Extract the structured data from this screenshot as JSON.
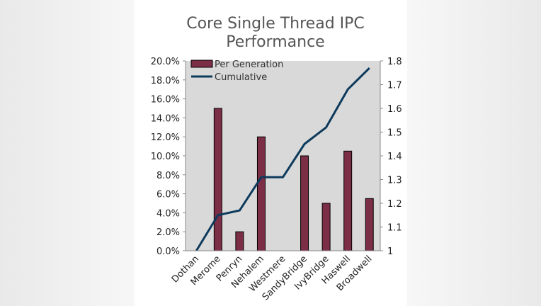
{
  "chart_data": {
    "type": "bar",
    "title": "Core Single Thread IPC Performance",
    "title_lines": [
      "Core Single Thread IPC",
      "Performance"
    ],
    "categories": [
      "Dothan",
      "Merome",
      "Penryn",
      "Nehalem",
      "Westmere",
      "SandyBridge",
      "IvyBridge",
      "Haswell",
      "Broadwell"
    ],
    "series": [
      {
        "name": "Per Generation",
        "type": "bar",
        "axis": "left",
        "color": "#7b2e46",
        "values": [
          0,
          15.0,
          2.0,
          12.0,
          0,
          10.0,
          5.0,
          10.5,
          5.5
        ]
      },
      {
        "name": "Cumulative",
        "type": "line",
        "axis": "right",
        "color": "#0d3a5c",
        "values": [
          1.0,
          1.15,
          1.17,
          1.31,
          1.31,
          1.45,
          1.52,
          1.68,
          1.77
        ]
      }
    ],
    "y_left": {
      "min": 0,
      "max": 20,
      "ticks": [
        "0.0%",
        "2.0%",
        "4.0%",
        "6.0%",
        "8.0%",
        "10.0%",
        "12.0%",
        "14.0%",
        "16.0%",
        "18.0%",
        "20.0%"
      ]
    },
    "y_right": {
      "min": 1,
      "max": 1.8,
      "ticks": [
        "1",
        "1.1",
        "1.2",
        "1.3",
        "1.4",
        "1.5",
        "1.6",
        "1.7",
        "1.8"
      ]
    },
    "plot_background": "#d9d9d9",
    "legend_position": "top-left",
    "grid": false
  }
}
